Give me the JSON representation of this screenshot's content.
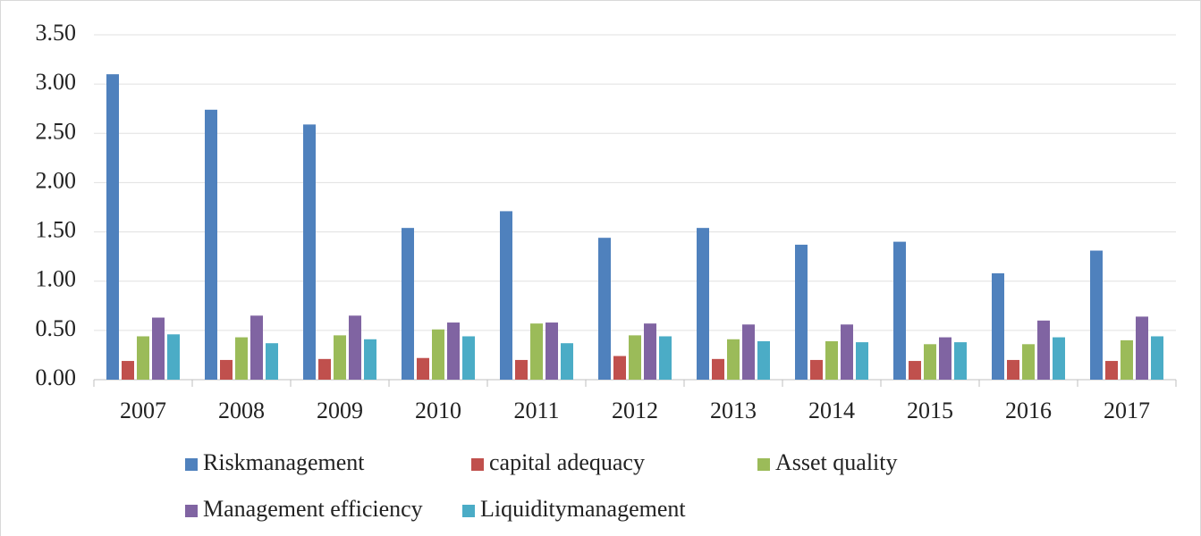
{
  "chart_data": {
    "type": "bar",
    "categories": [
      "2007",
      "2008",
      "2009",
      "2010",
      "2011",
      "2012",
      "2013",
      "2014",
      "2015",
      "2016",
      "2017"
    ],
    "series": [
      {
        "name": "Riskmanagement",
        "color": "#4f81bd",
        "values": [
          3.1,
          2.74,
          2.59,
          1.54,
          1.71,
          1.44,
          1.54,
          1.37,
          1.4,
          1.08,
          1.31
        ]
      },
      {
        "name": "capital adequacy",
        "color": "#c0504d",
        "values": [
          0.19,
          0.2,
          0.21,
          0.22,
          0.2,
          0.24,
          0.21,
          0.2,
          0.19,
          0.2,
          0.19
        ]
      },
      {
        "name": "Asset quality",
        "color": "#9bbb59",
        "values": [
          0.44,
          0.43,
          0.45,
          0.51,
          0.57,
          0.45,
          0.41,
          0.39,
          0.36,
          0.36,
          0.4
        ]
      },
      {
        "name": "Management efficiency",
        "color": "#8064a2",
        "values": [
          0.63,
          0.65,
          0.65,
          0.58,
          0.58,
          0.57,
          0.56,
          0.56,
          0.43,
          0.6,
          0.64
        ]
      },
      {
        "name": "Liquiditymanagement",
        "color": "#4bacc6",
        "values": [
          0.46,
          0.37,
          0.41,
          0.44,
          0.37,
          0.44,
          0.39,
          0.38,
          0.38,
          0.43,
          0.44
        ]
      }
    ],
    "ylim": [
      0,
      3.5
    ],
    "yticks": [
      {
        "value": 0,
        "label": "0.00"
      },
      {
        "value": 0.5,
        "label": "0.50"
      },
      {
        "value": 1,
        "label": "1.00"
      },
      {
        "value": 1.5,
        "label": "1.50"
      },
      {
        "value": 2,
        "label": "2.00"
      },
      {
        "value": 2.5,
        "label": "2.50"
      },
      {
        "value": 3,
        "label": "3.00"
      },
      {
        "value": 3.5,
        "label": "3.50"
      }
    ],
    "grid": true
  }
}
